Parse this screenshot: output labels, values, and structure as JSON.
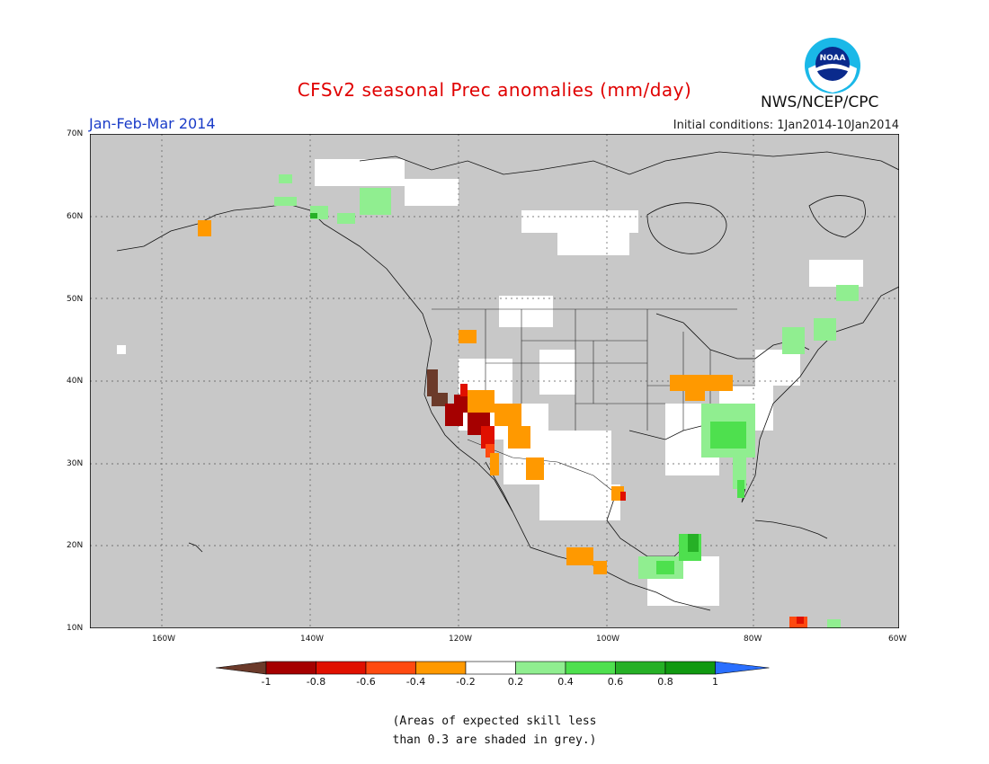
{
  "title": "CFSv2 seasonal Prec anomalies (mm/day)",
  "period": "Jan-Feb-Mar 2014",
  "initial_conditions": "Initial conditions: 1Jan2014-10Jan2014",
  "agency": "NWS/NCEP/CPC",
  "logo_text": "NOAA",
  "latitude_labels": [
    "70N",
    "60N",
    "50N",
    "40N",
    "30N",
    "20N",
    "10N"
  ],
  "longitude_labels": [
    "160W",
    "140W",
    "120W",
    "100W",
    "80W",
    "60W"
  ],
  "colorbar": {
    "labels": [
      "-1",
      "-0.8",
      "-0.6",
      "-0.4",
      "-0.2",
      "0.2",
      "0.4",
      "0.6",
      "0.8",
      "1"
    ],
    "colors": [
      "#6b3a2a",
      "#a50000",
      "#e01000",
      "#ff4a10",
      "#ff9900",
      "#ffffff",
      "#90ee90",
      "#4ee04e",
      "#26b026",
      "#119911",
      "#2a6fff"
    ]
  },
  "note_lines": [
    "(Areas of expected skill less",
    "than 0.3 are shaded in grey.)"
  ],
  "map_colors": {
    "ocean_land_default": "#c8c8c8",
    "skillful_neutral": "#ffffff"
  }
}
